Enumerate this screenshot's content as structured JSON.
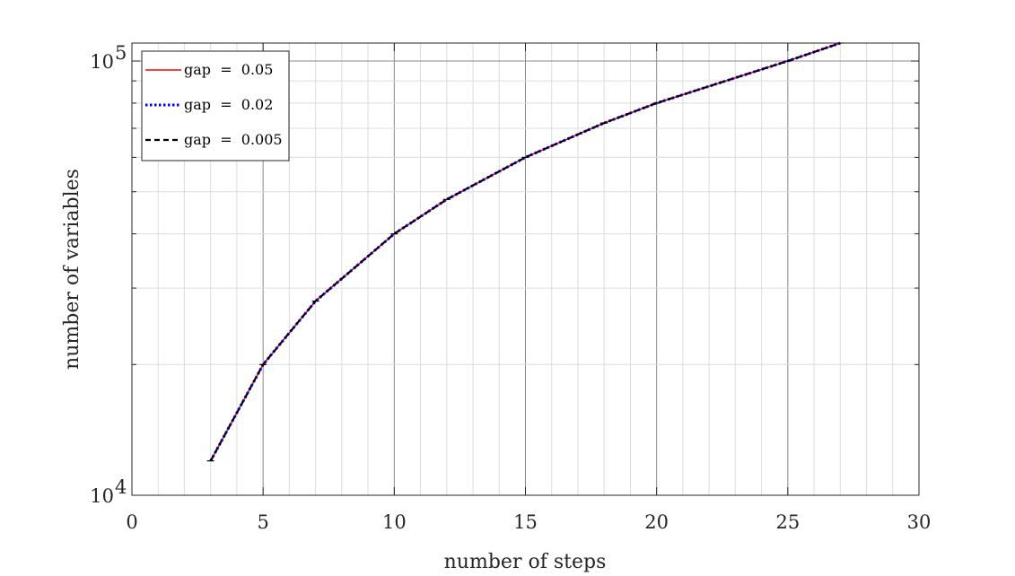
{
  "chart_data": {
    "type": "line",
    "title": "",
    "xlabel": "number of steps",
    "ylabel": "number of variables",
    "xlim": [
      0,
      30
    ],
    "ylim": [
      10000,
      110000
    ],
    "yscale": "log",
    "grid": true,
    "minor_grid": true,
    "legend_position": "top-left",
    "x_ticks": [
      "0",
      "5",
      "10",
      "15",
      "20",
      "25",
      "30"
    ],
    "y_ticks": [
      {
        "base": "10",
        "exp": "4"
      },
      {
        "base": "10",
        "exp": "5"
      }
    ],
    "x": [
      3,
      5,
      7,
      10,
      12,
      15,
      18,
      20,
      25,
      27
    ],
    "series": [
      {
        "name": "gap  =  0.05",
        "color": "#ff0000",
        "style": "solid",
        "values": [
          12000,
          20000,
          28000,
          40000,
          48000,
          60000,
          72000,
          80000,
          100000,
          110000
        ]
      },
      {
        "name": "gap  =  0.02",
        "color": "#0000ff",
        "style": "dotted",
        "values": [
          12000,
          20000,
          28000,
          40000,
          48000,
          60000,
          72000,
          80000,
          100000,
          110000
        ]
      },
      {
        "name": "gap  =  0.005",
        "color": "#000000",
        "style": "dashed",
        "values": [
          12000,
          20000,
          28000,
          40000,
          48000,
          60000,
          72000,
          80000,
          100000,
          110000
        ]
      }
    ]
  }
}
